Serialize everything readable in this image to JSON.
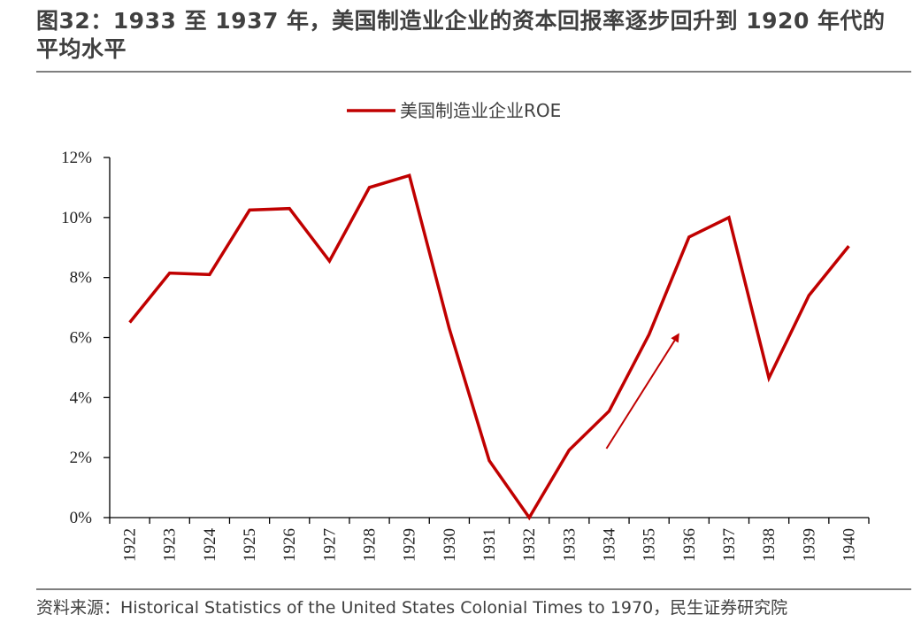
{
  "title": "图32：1933 至 1937 年，美国制造业企业的资本回报率逐步回升到 1920 年代的平均水平",
  "source": "资料来源：Historical Statistics of the United States Colonial Times to 1970，民生证券研究院",
  "colors": {
    "series": "#c00000",
    "axis": "#000000"
  },
  "chart_data": {
    "type": "line",
    "title": "",
    "xlabel": "",
    "ylabel": "",
    "ylim": [
      0,
      12
    ],
    "yticks": [
      0,
      2,
      4,
      6,
      8,
      10,
      12
    ],
    "ytick_labels": [
      "0%",
      "2%",
      "4%",
      "6%",
      "8%",
      "10%",
      "12%"
    ],
    "categories": [
      "1922",
      "1923",
      "1924",
      "1925",
      "1926",
      "1927",
      "1928",
      "1929",
      "1930",
      "1931",
      "1932",
      "1933",
      "1934",
      "1935",
      "1936",
      "1937",
      "1938",
      "1939",
      "1940"
    ],
    "series": [
      {
        "name": "美国制造业企业ROE",
        "values": [
          6.5,
          8.15,
          8.1,
          10.25,
          10.3,
          8.55,
          11.0,
          11.4,
          6.3,
          1.9,
          0.0,
          2.25,
          3.55,
          6.1,
          9.35,
          10.0,
          4.65,
          7.4,
          9.05
        ]
      }
    ],
    "legend": "top-center",
    "grid": false,
    "annotation": {
      "type": "arrow",
      "from": [
        "1934",
        2.3
      ],
      "to": [
        "1936",
        6.1
      ]
    }
  }
}
